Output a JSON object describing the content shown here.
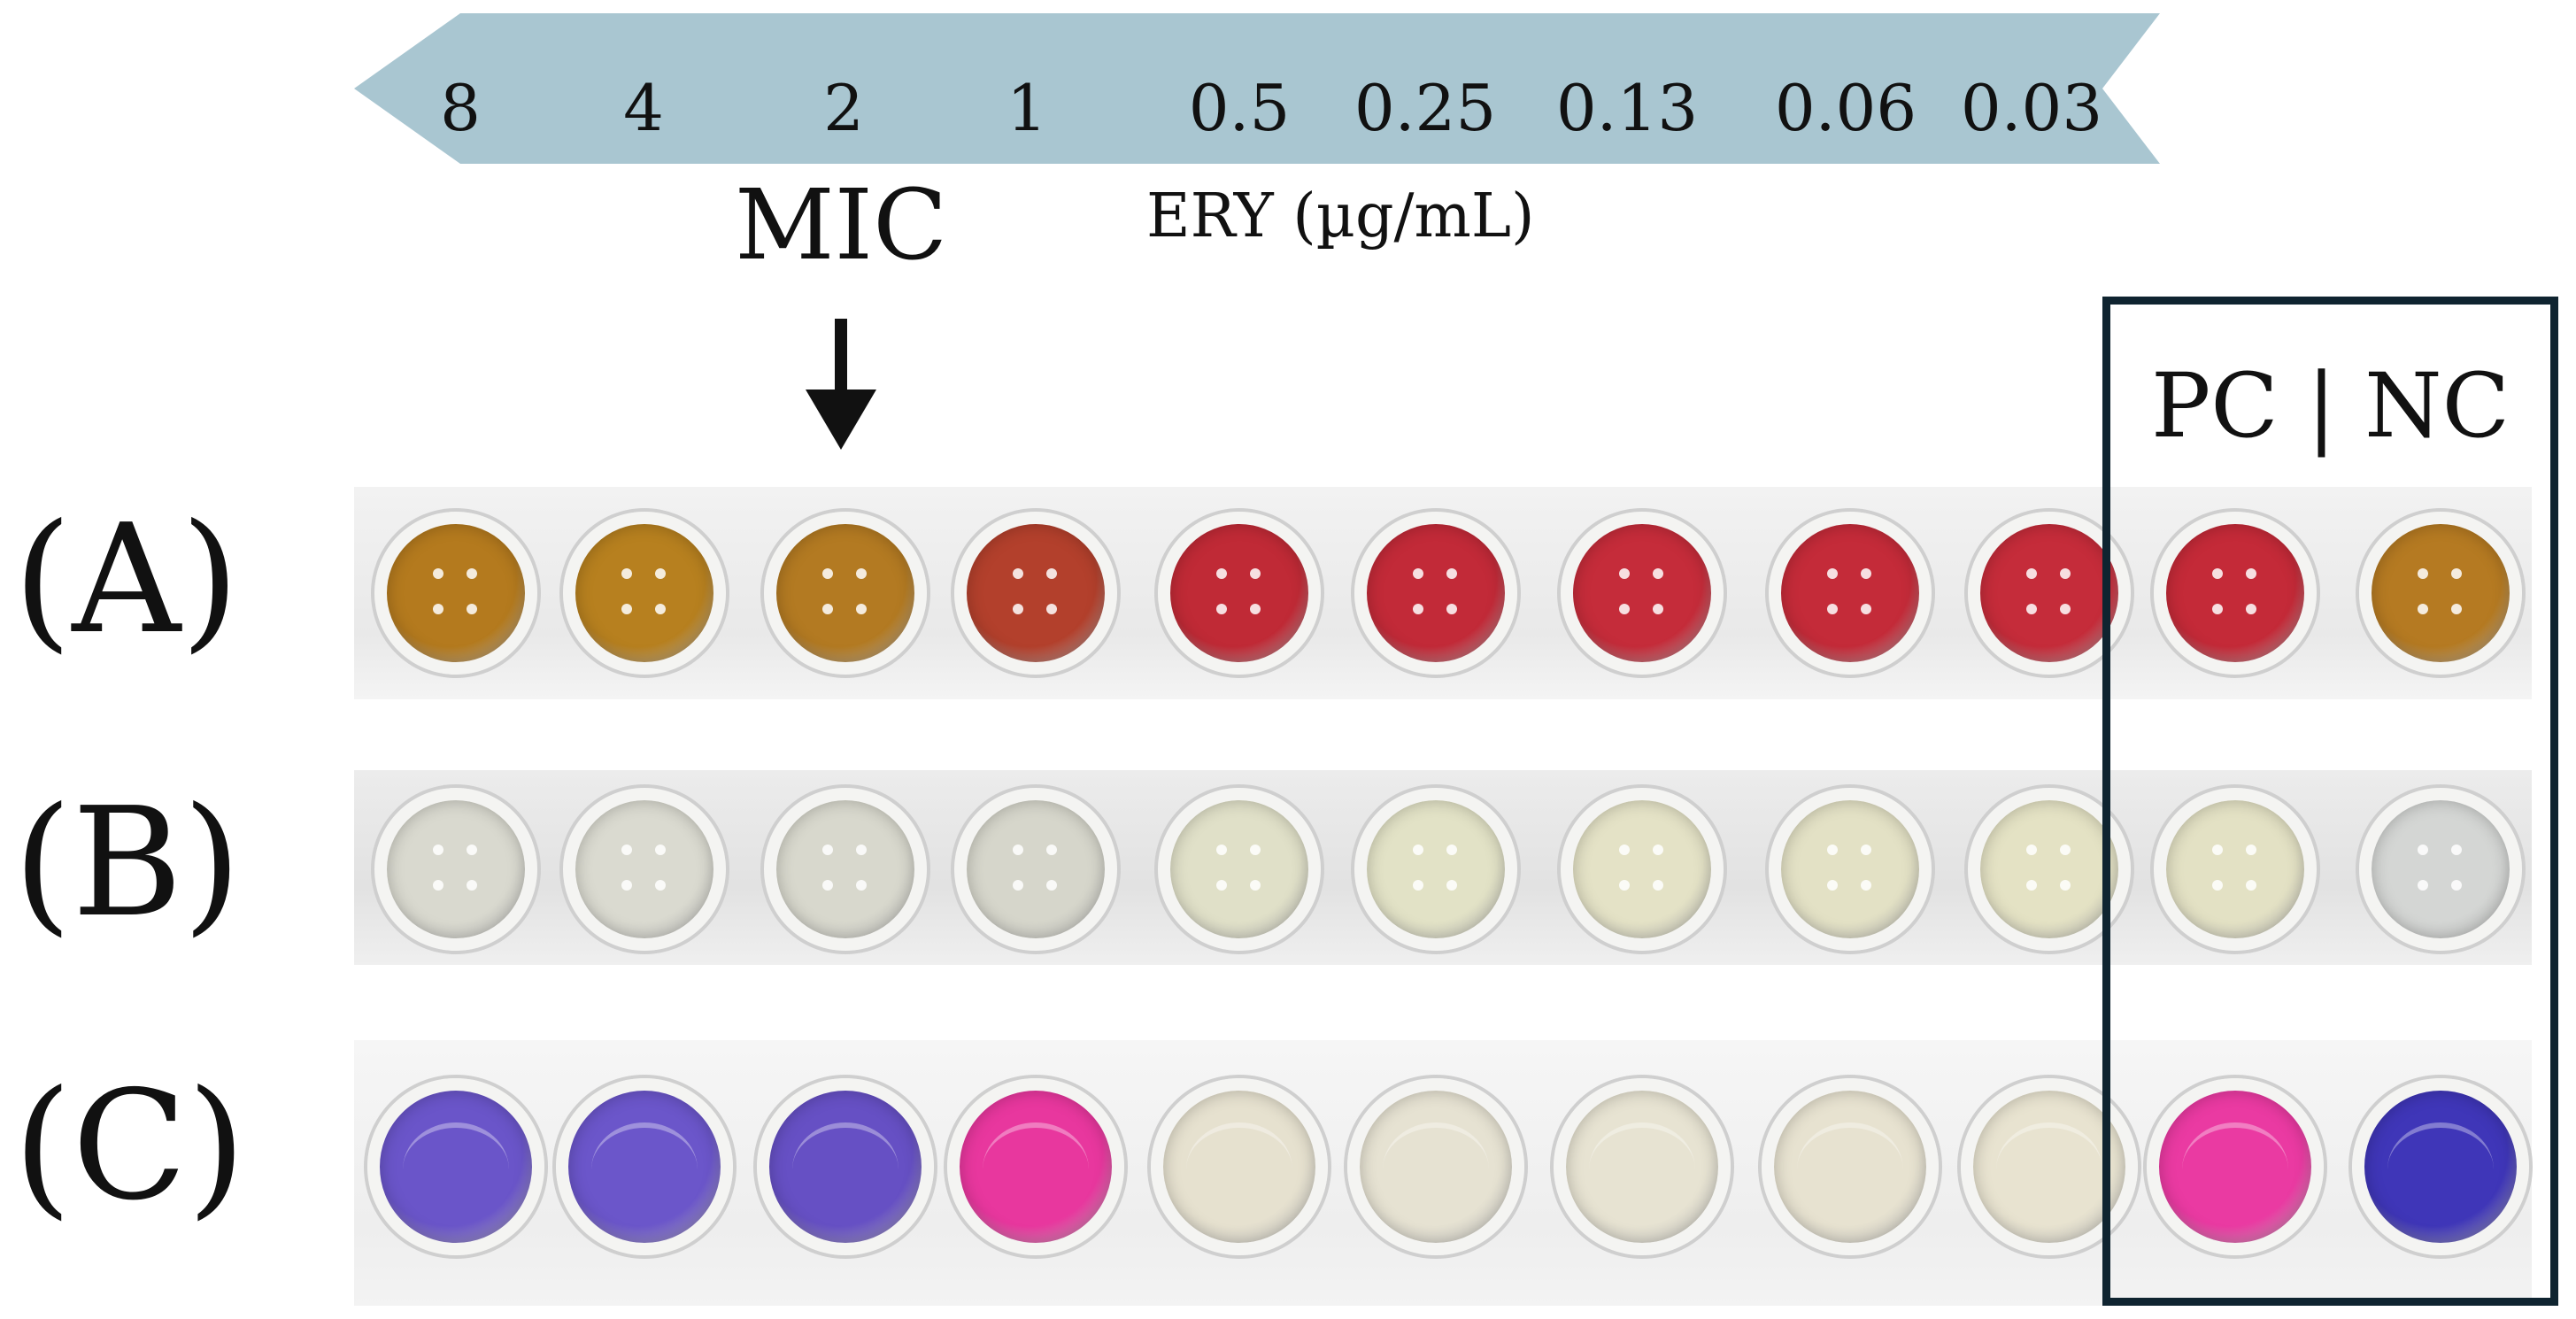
{
  "concentration_scale": {
    "values": [
      "8",
      "4",
      "2",
      "1",
      "0.5",
      "0.25",
      "0.13",
      "0.06",
      "0.03"
    ],
    "direction": "decreasing-left-to-right"
  },
  "mic_label": "MIC",
  "ery_label": "ERY (µg/mL)",
  "mic_marker_column": 3,
  "control_label": "PC | NC",
  "rows": [
    {
      "label": "(A)",
      "well_colors": [
        "#b47a1e",
        "#b7801f",
        "#b37a22",
        "#b3402c",
        "#c02a36",
        "#c22a38",
        "#c52c3a",
        "#c42b39",
        "#c52c3a",
        "#c42a38",
        "#b57a22"
      ]
    },
    {
      "label": "(B)",
      "well_colors": [
        "#d9d9cf",
        "#dadad0",
        "#d8d8cd",
        "#d6d6cb",
        "#e0e0c8",
        "#e2e2c6",
        "#e4e2c6",
        "#e3e1c5",
        "#e4e2c4",
        "#e3e1c4",
        "#d4d6d4"
      ]
    },
    {
      "label": "(C)",
      "well_colors": [
        "#6a55c9",
        "#6b56ca",
        "#6650c4",
        "#e8379e",
        "#e6e1cf",
        "#e6e2d2",
        "#e7e3d2",
        "#e7e2d0",
        "#e8e3d0",
        "#ea3aa2",
        "#3f36b8"
      ]
    }
  ],
  "colors": {
    "banner_fill": "#a9c6d1",
    "control_box_border": "#0f2430"
  }
}
